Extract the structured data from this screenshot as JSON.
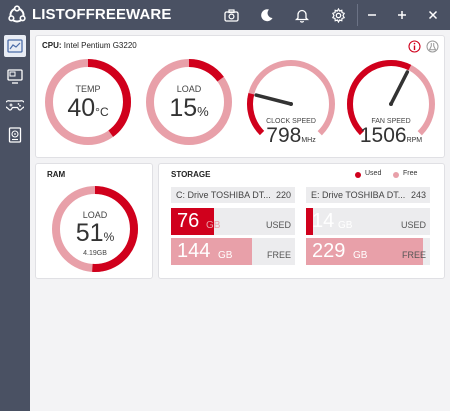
{
  "app": {
    "title": "LISTOFFREEWARE"
  },
  "titlebar": {
    "icons": [
      "camera-icon",
      "moon-icon",
      "bell-icon",
      "gear-icon"
    ],
    "window_controls": [
      "minimize-icon",
      "maximize-icon",
      "close-icon"
    ]
  },
  "sidebar": {
    "items": [
      {
        "name": "dashboard-icon",
        "active": true
      },
      {
        "name": "monitor-icon",
        "active": false
      },
      {
        "name": "gamepad-icon",
        "active": false
      },
      {
        "name": "drive-icon",
        "active": false
      }
    ]
  },
  "cpu": {
    "label": "CPU:",
    "model": "Intel Pentium G3220",
    "info_icon": "info-icon",
    "lab_icon": "flask-icon",
    "temp": {
      "label": "TEMP",
      "value": "40",
      "unit": "°C",
      "level": 0.4
    },
    "load": {
      "label": "LOAD",
      "value": "15",
      "unit": "%",
      "level": 0.15
    },
    "clock": {
      "label": "CLOCK SPEED",
      "value": "798",
      "unit": "MHz",
      "level": 0.22
    },
    "fan": {
      "label": "FAN SPEED",
      "value": "1506",
      "unit": "RPM",
      "level": 0.6
    }
  },
  "ram": {
    "title": "RAM",
    "label": "LOAD",
    "value": "51",
    "unit": "%",
    "sub": "4.19GB",
    "level": 0.51
  },
  "storage": {
    "title": "STORAGE",
    "legend_used": "Used",
    "legend_free": "Free",
    "drives": [
      {
        "name": "C: Drive TOSHIBA DT...",
        "size": "220",
        "used": "76",
        "used_unit": "GB",
        "used_tag": "USED",
        "free": "144",
        "free_unit": "GB",
        "free_tag": "FREE",
        "used_frac": 0.35,
        "free_frac": 0.65
      },
      {
        "name": "E: Drive TOSHIBA DT...",
        "size": "243",
        "used": "14",
        "used_unit": "GB",
        "used_tag": "USED",
        "free": "229",
        "free_unit": "GB",
        "free_tag": "FREE",
        "used_frac": 0.06,
        "free_frac": 0.94
      }
    ]
  },
  "colors": {
    "accent": "#d0001c",
    "light": "#e8a0a9",
    "track": "#ececee",
    "chrome": "#4a5163"
  }
}
